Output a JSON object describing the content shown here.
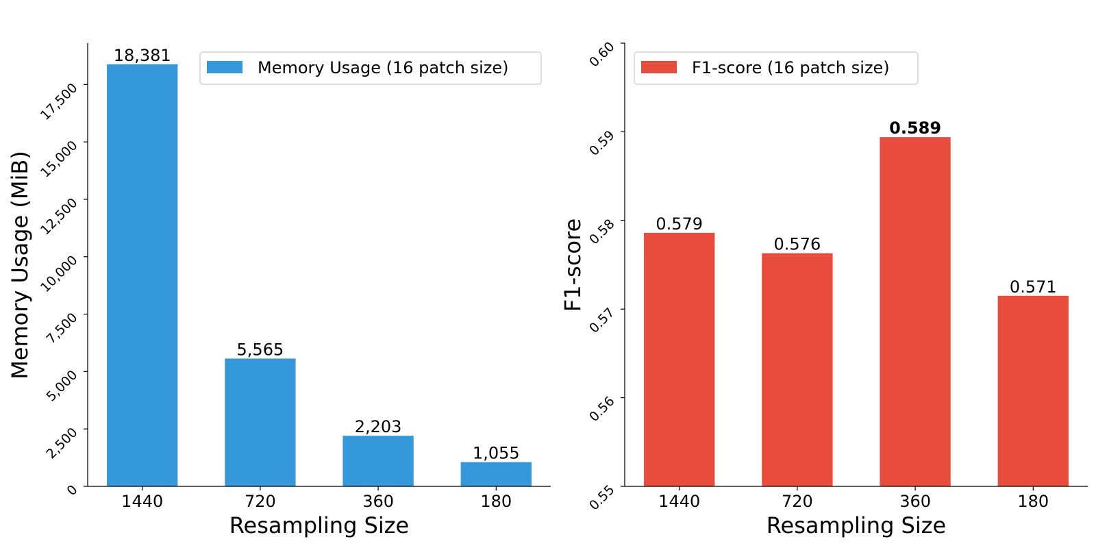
{
  "chart_data": [
    {
      "type": "bar",
      "categories": [
        "1440",
        "720",
        "360",
        "180"
      ],
      "series": [
        {
          "name": "Memory Usage (16 patch size)",
          "values": [
            18381,
            5565,
            2203,
            1055
          ],
          "labels": [
            "18,381",
            "5,565",
            "2,203",
            "1,055"
          ],
          "color": "#3498db"
        }
      ],
      "xlabel": "Resampling Size",
      "ylabel": "Memory Usage (MiB)",
      "ylim": [
        0,
        19300
      ],
      "yticks": [
        0,
        2500,
        5000,
        7500,
        10000,
        12500,
        15000,
        17500
      ],
      "ytick_labels": [
        "0",
        "2,500",
        "5,000",
        "7,500",
        "10,000",
        "12,500",
        "15,000",
        "17,500"
      ],
      "highlight_index": -1,
      "legend_position": "upper right",
      "grid": false
    },
    {
      "type": "bar",
      "categories": [
        "1440",
        "720",
        "360",
        "180"
      ],
      "series": [
        {
          "name": "F1-score (16 patch size)",
          "values": [
            0.5786,
            0.5763,
            0.5894,
            0.5715
          ],
          "labels": [
            "0.579",
            "0.576",
            "0.589",
            "0.571"
          ],
          "color": "#e74c3c"
        }
      ],
      "xlabel": "Resampling Size",
      "ylabel": "F1-score",
      "ylim": [
        0.55,
        0.6
      ],
      "yticks": [
        0.55,
        0.56,
        0.57,
        0.58,
        0.59,
        0.6
      ],
      "ytick_labels": [
        "0.55",
        "0.56",
        "0.57",
        "0.58",
        "0.59",
        "0.60"
      ],
      "highlight_index": 2,
      "legend_position": "upper left",
      "grid": false
    }
  ]
}
